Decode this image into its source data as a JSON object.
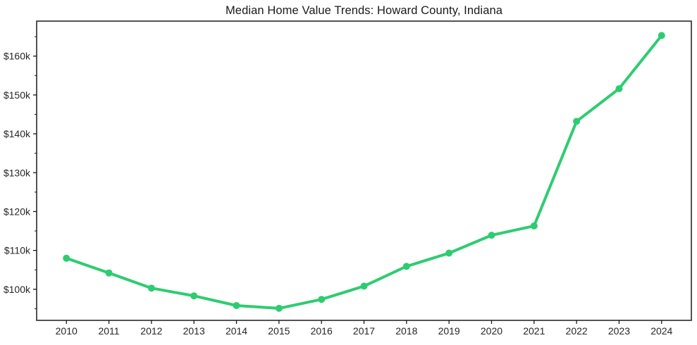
{
  "window": {
    "background_color": "#ffffff"
  },
  "chart_data": {
    "type": "line",
    "title": "Median Home Value Trends: Howard County, Indiana",
    "x": [
      2010,
      2011,
      2012,
      2013,
      2014,
      2015,
      2016,
      2017,
      2018,
      2019,
      2020,
      2021,
      2022,
      2023,
      2024
    ],
    "series": [
      {
        "name": "Median Home Value",
        "values": [
          108000,
          104200,
          100300,
          98300,
          95800,
          95100,
          97400,
          100800,
          105900,
          109300,
          113900,
          116300,
          143200,
          151600,
          165300
        ]
      }
    ],
    "xlabel": "",
    "ylabel": "",
    "xlim": [
      2009.3,
      2024.7
    ],
    "ylim": [
      92000,
      169000
    ],
    "grid": false,
    "legend": "none",
    "x_ticks": [
      {
        "value": 2010,
        "label": "2010"
      },
      {
        "value": 2011,
        "label": "2011"
      },
      {
        "value": 2012,
        "label": "2012"
      },
      {
        "value": 2013,
        "label": "2013"
      },
      {
        "value": 2014,
        "label": "2014"
      },
      {
        "value": 2015,
        "label": "2015"
      },
      {
        "value": 2016,
        "label": "2016"
      },
      {
        "value": 2017,
        "label": "2017"
      },
      {
        "value": 2018,
        "label": "2018"
      },
      {
        "value": 2019,
        "label": "2019"
      },
      {
        "value": 2020,
        "label": "2020"
      },
      {
        "value": 2021,
        "label": "2021"
      },
      {
        "value": 2022,
        "label": "2022"
      },
      {
        "value": 2023,
        "label": "2023"
      },
      {
        "value": 2024,
        "label": "2024"
      }
    ],
    "y_ticks": [
      {
        "value": 100000,
        "label": "$100k"
      },
      {
        "value": 110000,
        "label": "$110k"
      },
      {
        "value": 120000,
        "label": "$120k"
      },
      {
        "value": 130000,
        "label": "$130k"
      },
      {
        "value": 140000,
        "label": "$140k"
      },
      {
        "value": 150000,
        "label": "$150k"
      },
      {
        "value": 160000,
        "label": "$160k"
      }
    ],
    "y_minor_ticks": [
      95000,
      105000,
      115000,
      125000,
      135000,
      145000,
      155000,
      165000
    ],
    "line_color": "#2ecc71",
    "marker": "circle",
    "marker_size": 5,
    "line_width": 4,
    "text_color": "#262626",
    "spine_color": "#1a1a1a"
  }
}
